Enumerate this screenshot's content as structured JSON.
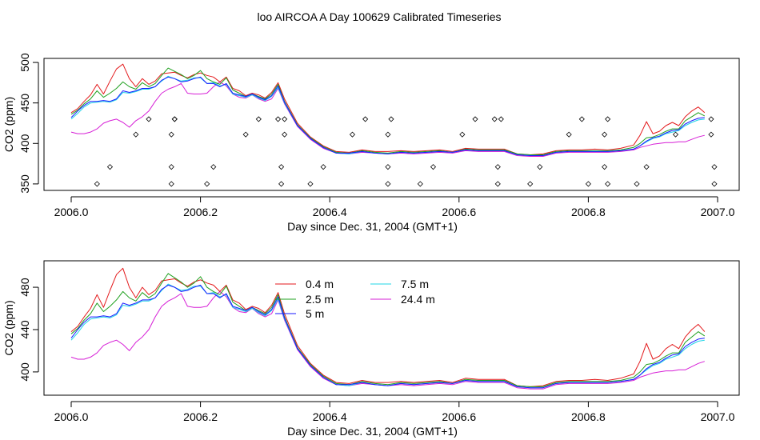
{
  "figure_title": "loo AIRCOA A  Day 100629  Calibrated Timeseries",
  "colors": {
    "0.4 m": "#e31a1c",
    "2.5 m": "#1fa01f",
    "5 m": "#1a1aff",
    "7.5 m": "#1fd4e6",
    "24.4 m": "#d61fd6",
    "markers": "#000000",
    "axis": "#000000"
  },
  "chart_data": [
    {
      "type": "line",
      "xlabel": "Day since Dec. 31, 2004 (GMT+1)",
      "ylabel": "CO2 (ppm)",
      "xlim": [
        1999.85,
        2007.1
      ],
      "ylim": [
        342,
        505
      ],
      "xticks": [
        "2006.0",
        "2006.2",
        "2006.4",
        "2006.6",
        "2006.8",
        "2007.0"
      ],
      "xtick_values": [
        2006.0,
        2006.2,
        2006.4,
        2006.6,
        2006.8,
        2007.0
      ],
      "yticks": [
        "350",
        "400",
        "450",
        "500"
      ],
      "ytick_values": [
        350,
        400,
        450,
        500
      ],
      "markers": {
        "type": "scatter",
        "symbol": "open-diamond",
        "x": [
          2006.04,
          2006.06,
          2006.1,
          2006.12,
          2006.155,
          2006.155,
          2006.155,
          2006.16,
          2006.16,
          2006.21,
          2006.22,
          2006.27,
          2006.29,
          2006.32,
          2006.325,
          2006.325,
          2006.33,
          2006.33,
          2006.37,
          2006.39,
          2006.435,
          2006.455,
          2006.49,
          2006.49,
          2006.49,
          2006.495,
          2006.54,
          2006.56,
          2006.605,
          2006.625,
          2006.655,
          2006.66,
          2006.66,
          2006.665,
          2006.71,
          2006.725,
          2006.77,
          2006.79,
          2006.8,
          2006.825,
          2006.825,
          2006.83,
          2006.83,
          2006.875,
          2006.89,
          2006.935,
          2006.99,
          2006.99,
          2006.995,
          2006.995
        ],
        "y": [
          350,
          371,
          411,
          430,
          350,
          371,
          411,
          430,
          430,
          350,
          371,
          411,
          430,
          430,
          350,
          371,
          411,
          430,
          350,
          371,
          411,
          430,
          350,
          371,
          411,
          430,
          350,
          371,
          411,
          430,
          430,
          350,
          371,
          430,
          350,
          371,
          411,
          430,
          350,
          371,
          411,
          430,
          350,
          350,
          371,
          411,
          430,
          411,
          371,
          350
        ]
      },
      "x": [
        2006.0,
        2006.01,
        2006.02,
        2006.03,
        2006.04,
        2006.05,
        2006.06,
        2006.07,
        2006.08,
        2006.09,
        2006.1,
        2006.11,
        2006.12,
        2006.13,
        2006.14,
        2006.15,
        2006.16,
        2006.17,
        2006.18,
        2006.19,
        2006.2,
        2006.21,
        2006.22,
        2006.23,
        2006.24,
        2006.25,
        2006.26,
        2006.27,
        2006.28,
        2006.29,
        2006.3,
        2006.31,
        2006.32,
        2006.33,
        2006.35,
        2006.37,
        2006.39,
        2006.41,
        2006.43,
        2006.45,
        2006.47,
        2006.49,
        2006.51,
        2006.53,
        2006.55,
        2006.57,
        2006.59,
        2006.61,
        2006.63,
        2006.65,
        2006.67,
        2006.69,
        2006.71,
        2006.73,
        2006.75,
        2006.77,
        2006.79,
        2006.81,
        2006.83,
        2006.85,
        2006.87,
        2006.88,
        2006.89,
        2006.9,
        2006.91,
        2006.92,
        2006.93,
        2006.94,
        2006.95,
        2006.96,
        2006.97,
        2006.98
      ],
      "series": [
        {
          "name": "0.4 m",
          "values": [
            438,
            443,
            452,
            460,
            473,
            461,
            477,
            492,
            498,
            480,
            470,
            480,
            473,
            477,
            486,
            487,
            488,
            484,
            481,
            485,
            487,
            484,
            482,
            476,
            482,
            468,
            465,
            459,
            462,
            460,
            456,
            463,
            475,
            455,
            425,
            408,
            397,
            390,
            389,
            392,
            390,
            390,
            391,
            390,
            391,
            392,
            390,
            394,
            393,
            393,
            393,
            387,
            386,
            387,
            391,
            392,
            392,
            393,
            392,
            394,
            398,
            410,
            427,
            412,
            415,
            422,
            426,
            422,
            433,
            440,
            445,
            438
          ]
        },
        {
          "name": "2.5 m",
          "values": [
            436,
            441,
            449,
            455,
            465,
            457,
            462,
            468,
            476,
            470,
            467,
            475,
            470,
            474,
            484,
            493,
            489,
            485,
            480,
            484,
            490,
            480,
            476,
            473,
            481,
            466,
            462,
            458,
            461,
            458,
            455,
            461,
            473,
            452,
            423,
            407,
            396,
            389,
            388,
            391,
            389,
            388,
            390,
            389,
            390,
            391,
            389,
            393,
            392,
            392,
            392,
            387,
            386,
            386,
            390,
            391,
            391,
            391,
            391,
            392,
            395,
            400,
            407,
            408,
            411,
            415,
            418,
            418,
            428,
            433,
            438,
            434
          ]
        },
        {
          "name": "5 m",
          "values": [
            432,
            440,
            447,
            452,
            452,
            453,
            452,
            455,
            465,
            463,
            465,
            468,
            468,
            470,
            478,
            482,
            480,
            476,
            477,
            480,
            482,
            474,
            474,
            470,
            474,
            462,
            460,
            458,
            461,
            457,
            454,
            459,
            471,
            451,
            422,
            406,
            395,
            388,
            388,
            390,
            388,
            387,
            389,
            388,
            389,
            390,
            389,
            392,
            391,
            391,
            391,
            386,
            385,
            385,
            389,
            390,
            390,
            390,
            390,
            391,
            393,
            397,
            403,
            407,
            409,
            413,
            416,
            417,
            424,
            428,
            431,
            432
          ]
        },
        {
          "name": "7.5 m",
          "values": [
            430,
            437,
            445,
            450,
            451,
            452,
            451,
            454,
            463,
            462,
            464,
            467,
            467,
            470,
            477,
            483,
            480,
            477,
            478,
            481,
            481,
            474,
            475,
            471,
            473,
            461,
            459,
            457,
            460,
            456,
            453,
            458,
            469,
            450,
            422,
            406,
            395,
            388,
            387,
            390,
            388,
            387,
            389,
            388,
            389,
            390,
            389,
            392,
            391,
            391,
            391,
            386,
            385,
            385,
            389,
            390,
            390,
            390,
            390,
            391,
            393,
            397,
            402,
            406,
            408,
            412,
            414,
            416,
            422,
            426,
            429,
            430
          ]
        },
        {
          "name": "24.4 m",
          "values": [
            414,
            412,
            412,
            414,
            418,
            425,
            428,
            430,
            426,
            420,
            428,
            433,
            440,
            452,
            462,
            467,
            470,
            474,
            462,
            461,
            461,
            462,
            470,
            476,
            471,
            461,
            457,
            456,
            460,
            455,
            452,
            455,
            468,
            449,
            421,
            405,
            394,
            388,
            387,
            389,
            388,
            387,
            388,
            387,
            388,
            389,
            388,
            391,
            390,
            390,
            390,
            385,
            384,
            384,
            388,
            389,
            389,
            389,
            389,
            390,
            392,
            395,
            397,
            399,
            400,
            401,
            401,
            402,
            402,
            405,
            408,
            410
          ]
        }
      ]
    },
    {
      "type": "line",
      "xlabel": "Day since Dec. 31, 2004 (GMT+1)",
      "ylabel": "CO2 (ppm)",
      "xlim": [
        1999.85,
        2007.1
      ],
      "ylim": [
        378,
        505
      ],
      "xticks": [
        "2006.0",
        "2006.2",
        "2006.4",
        "2006.6",
        "2006.8",
        "2007.0"
      ],
      "xtick_values": [
        2006.0,
        2006.2,
        2006.4,
        2006.6,
        2006.8,
        2007.0
      ],
      "yticks": [
        "400",
        "440",
        "480"
      ],
      "ytick_values": [
        400,
        440,
        480
      ],
      "legend": {
        "placement": "top-center",
        "entries": [
          "0.4 m",
          "2.5 m",
          "5 m",
          "7.5 m",
          "24.4 m"
        ]
      },
      "same_series_as_panel": 0
    }
  ]
}
